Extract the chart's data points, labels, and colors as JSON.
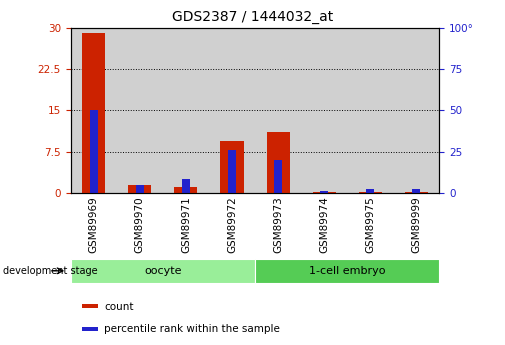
{
  "title": "GDS2387 / 1444032_at",
  "samples": [
    "GSM89969",
    "GSM89970",
    "GSM89971",
    "GSM89972",
    "GSM89973",
    "GSM89974",
    "GSM89975",
    "GSM89999"
  ],
  "count_values": [
    29.0,
    1.5,
    1.2,
    9.5,
    11.0,
    0.3,
    0.2,
    0.3
  ],
  "percentile_values": [
    50.0,
    5.0,
    8.5,
    26.0,
    20.0,
    1.5,
    2.5,
    2.5
  ],
  "left_ylim": [
    0,
    30
  ],
  "right_ylim": [
    0,
    100
  ],
  "left_yticks": [
    0,
    7.5,
    15,
    22.5,
    30
  ],
  "right_yticks": [
    0,
    25,
    50,
    75,
    100
  ],
  "left_ytick_labels": [
    "0",
    "7.5",
    "15",
    "22.5",
    "30"
  ],
  "right_ytick_labels": [
    "0",
    "25",
    "50",
    "75",
    "100°"
  ],
  "count_color": "#cc2200",
  "percentile_color": "#2222cc",
  "bar_bg_color": "#d0d0d0",
  "groups": [
    {
      "label": "oocyte",
      "start": 0,
      "end": 3,
      "color": "#99ee99"
    },
    {
      "label": "1-cell embryo",
      "start": 4,
      "end": 7,
      "color": "#55cc55"
    }
  ],
  "stage_label": "development stage",
  "legend_items": [
    {
      "color": "#cc2200",
      "label": "count"
    },
    {
      "color": "#2222cc",
      "label": "percentile rank within the sample"
    }
  ],
  "count_bar_width": 0.5,
  "pct_bar_width": 0.18,
  "title_fontsize": 10,
  "tick_fontsize": 7.5,
  "group_fontsize": 8,
  "legend_fontsize": 7.5
}
